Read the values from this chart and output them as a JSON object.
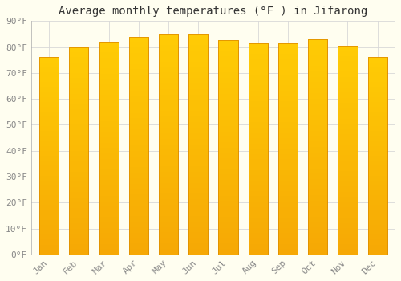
{
  "title": "Average monthly temperatures (°F ) in Jifarong",
  "months": [
    "Jan",
    "Feb",
    "Mar",
    "Apr",
    "May",
    "Jun",
    "Jul",
    "Aug",
    "Sep",
    "Oct",
    "Nov",
    "Dec"
  ],
  "values": [
    76,
    80,
    82,
    84,
    85,
    85,
    82.5,
    81.5,
    81.5,
    83,
    80.5,
    76
  ],
  "bar_color_top": "#FFCC44",
  "bar_color_bottom": "#F5A800",
  "bar_edge_color": "#E09000",
  "background_color": "#FFFEF0",
  "grid_color": "#D8D8D8",
  "ylim": [
    0,
    90
  ],
  "yticks": [
    0,
    10,
    20,
    30,
    40,
    50,
    60,
    70,
    80,
    90
  ],
  "ytick_labels": [
    "0°F",
    "10°F",
    "20°F",
    "30°F",
    "40°F",
    "50°F",
    "60°F",
    "70°F",
    "80°F",
    "90°F"
  ],
  "title_fontsize": 10,
  "tick_fontsize": 8,
  "font_family": "monospace",
  "tick_color": "#888888",
  "bar_width": 0.65
}
